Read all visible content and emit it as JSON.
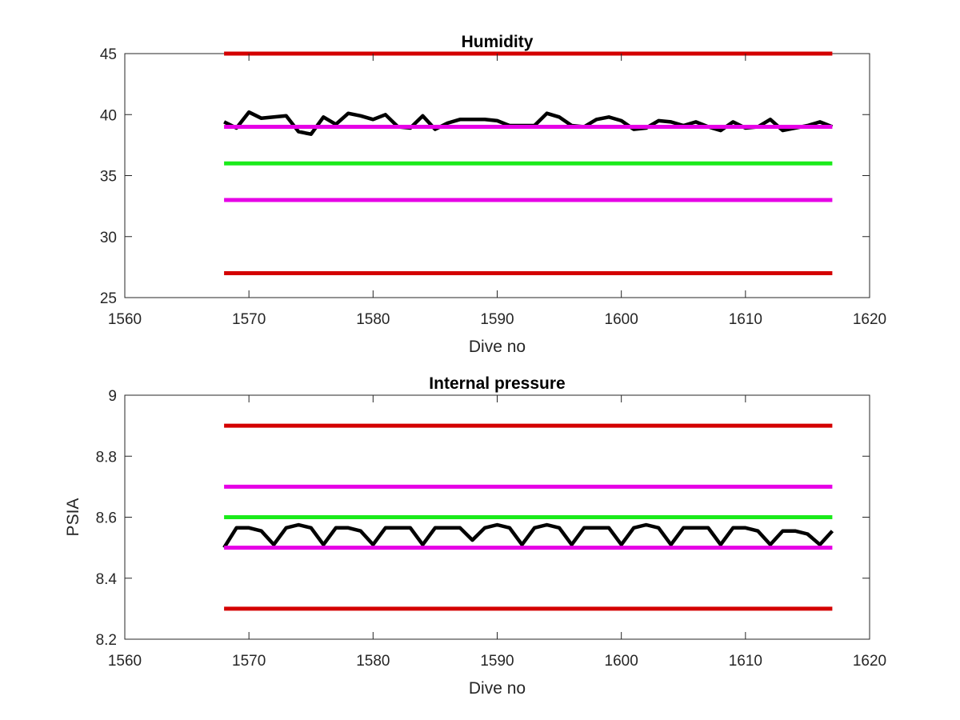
{
  "chart_data": [
    {
      "type": "line",
      "title": "Humidity",
      "xlabel": "Dive no",
      "ylabel": "",
      "xlim": [
        1560,
        1620
      ],
      "ylim": [
        25,
        45
      ],
      "xticks": [
        1560,
        1570,
        1580,
        1590,
        1600,
        1610,
        1620
      ],
      "yticks": [
        25,
        30,
        35,
        40,
        45
      ],
      "grid": false,
      "series": [
        {
          "color": "#000000",
          "x": [
            1568,
            1569,
            1570,
            1571,
            1572,
            1573,
            1574,
            1575,
            1576,
            1577,
            1578,
            1579,
            1580,
            1581,
            1582,
            1583,
            1584,
            1585,
            1586,
            1587,
            1588,
            1589,
            1590,
            1591,
            1592,
            1593,
            1594,
            1595,
            1596,
            1597,
            1598,
            1599,
            1600,
            1601,
            1602,
            1603,
            1604,
            1605,
            1606,
            1607,
            1608,
            1609,
            1610,
            1611,
            1612,
            1613,
            1614,
            1615,
            1616,
            1617
          ],
          "y": [
            39.4,
            38.9,
            40.2,
            39.7,
            39.8,
            39.9,
            38.6,
            38.4,
            39.8,
            39.2,
            40.1,
            39.9,
            39.6,
            40.0,
            39.0,
            38.9,
            39.9,
            38.8,
            39.3,
            39.6,
            39.6,
            39.6,
            39.5,
            39.1,
            39.1,
            39.1,
            40.1,
            39.8,
            39.1,
            39.0,
            39.6,
            39.8,
            39.5,
            38.8,
            38.9,
            39.5,
            39.4,
            39.1,
            39.4,
            39.0,
            38.7,
            39.4,
            38.9,
            39.0,
            39.6,
            38.7,
            38.9,
            39.1,
            39.4,
            39.0
          ]
        },
        {
          "color": "#d40000",
          "x": [
            1568,
            1617
          ],
          "y": [
            45,
            45
          ]
        },
        {
          "color": "#e600e6",
          "x": [
            1568,
            1617
          ],
          "y": [
            39,
            39
          ]
        },
        {
          "color": "#1aeb1a",
          "x": [
            1568,
            1617
          ],
          "y": [
            36,
            36
          ]
        },
        {
          "color": "#e600e6",
          "x": [
            1568,
            1617
          ],
          "y": [
            33,
            33
          ]
        },
        {
          "color": "#d40000",
          "x": [
            1568,
            1617
          ],
          "y": [
            27,
            27
          ]
        }
      ]
    },
    {
      "type": "line",
      "title": "Internal pressure",
      "xlabel": "Dive no",
      "ylabel": "PSIA",
      "xlim": [
        1560,
        1620
      ],
      "ylim": [
        8.2,
        9
      ],
      "xticks": [
        1560,
        1570,
        1580,
        1590,
        1600,
        1610,
        1620
      ],
      "yticks": [
        8.2,
        8.4,
        8.6,
        8.8,
        9
      ],
      "grid": false,
      "series": [
        {
          "color": "#000000",
          "x": [
            1568,
            1569,
            1570,
            1571,
            1572,
            1573,
            1574,
            1575,
            1576,
            1577,
            1578,
            1579,
            1580,
            1581,
            1582,
            1583,
            1584,
            1585,
            1586,
            1587,
            1588,
            1589,
            1590,
            1591,
            1592,
            1593,
            1594,
            1595,
            1596,
            1597,
            1598,
            1599,
            1600,
            1601,
            1602,
            1603,
            1604,
            1605,
            1606,
            1607,
            1608,
            1609,
            1610,
            1611,
            1612,
            1613,
            1614,
            1615,
            1616,
            1617
          ],
          "y": [
            8.5,
            8.565,
            8.565,
            8.555,
            8.51,
            8.565,
            8.575,
            8.565,
            8.51,
            8.565,
            8.565,
            8.555,
            8.51,
            8.565,
            8.565,
            8.565,
            8.51,
            8.565,
            8.565,
            8.565,
            8.525,
            8.565,
            8.575,
            8.565,
            8.51,
            8.565,
            8.575,
            8.565,
            8.51,
            8.565,
            8.565,
            8.565,
            8.51,
            8.565,
            8.575,
            8.565,
            8.51,
            8.565,
            8.565,
            8.565,
            8.51,
            8.565,
            8.565,
            8.555,
            8.51,
            8.555,
            8.555,
            8.545,
            8.51,
            8.555
          ]
        },
        {
          "color": "#d40000",
          "x": [
            1568,
            1617
          ],
          "y": [
            8.9,
            8.9
          ]
        },
        {
          "color": "#e600e6",
          "x": [
            1568,
            1617
          ],
          "y": [
            8.7,
            8.7
          ]
        },
        {
          "color": "#1aeb1a",
          "x": [
            1568,
            1617
          ],
          "y": [
            8.6,
            8.6
          ]
        },
        {
          "color": "#e600e6",
          "x": [
            1568,
            1617
          ],
          "y": [
            8.5,
            8.5
          ]
        },
        {
          "color": "#d40000",
          "x": [
            1568,
            1617
          ],
          "y": [
            8.3,
            8.3
          ]
        }
      ]
    }
  ]
}
